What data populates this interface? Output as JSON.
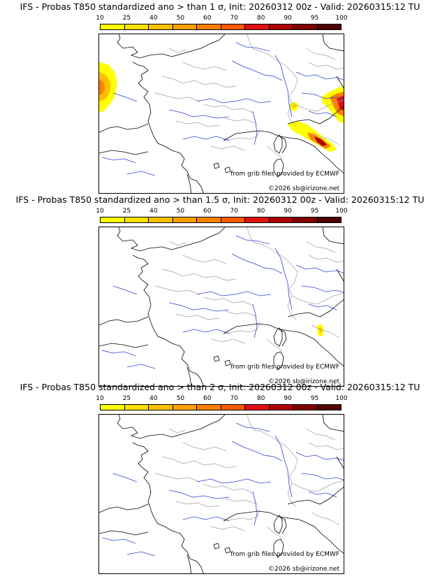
{
  "colorbar": {
    "ticks": [
      "10",
      "25",
      "40",
      "50",
      "60",
      "70",
      "80",
      "90",
      "95",
      "100"
    ],
    "colors": [
      "#ffff00",
      "#ffe000",
      "#ffc000",
      "#ffa000",
      "#ff8000",
      "#ff5a00",
      "#e01010",
      "#b00000",
      "#800000",
      "#500000"
    ]
  },
  "panels": [
    {
      "title": "IFS - Probas T850  standardized ano > than 1 σ, Init: 20260312 00z - Valid: 20260315:12 TU",
      "credit": "from grib files provided by ECMWF",
      "copyright": "©2026 sb@irizone.net",
      "areas": [
        "western-atlantic",
        "northern-adriatic",
        "central-italy",
        "po-valley"
      ]
    },
    {
      "title": "IFS - Probas T850  standardized ano > than 1.5 σ, Init: 20260312 00z - Valid: 20260315:12 TU",
      "credit": "from grib files provided by ECMWF",
      "copyright": "©2026 sb@irizone.net",
      "areas": [
        "central-italy-small"
      ]
    },
    {
      "title": "IFS - Probas T850  standardized ano > than 2 σ, Init: 20260312 00z - Valid: 20260315:12 TU",
      "credit": "from grib files provided by ECMWF",
      "copyright": "©2026 sb@irizone.net",
      "areas": []
    }
  ]
}
